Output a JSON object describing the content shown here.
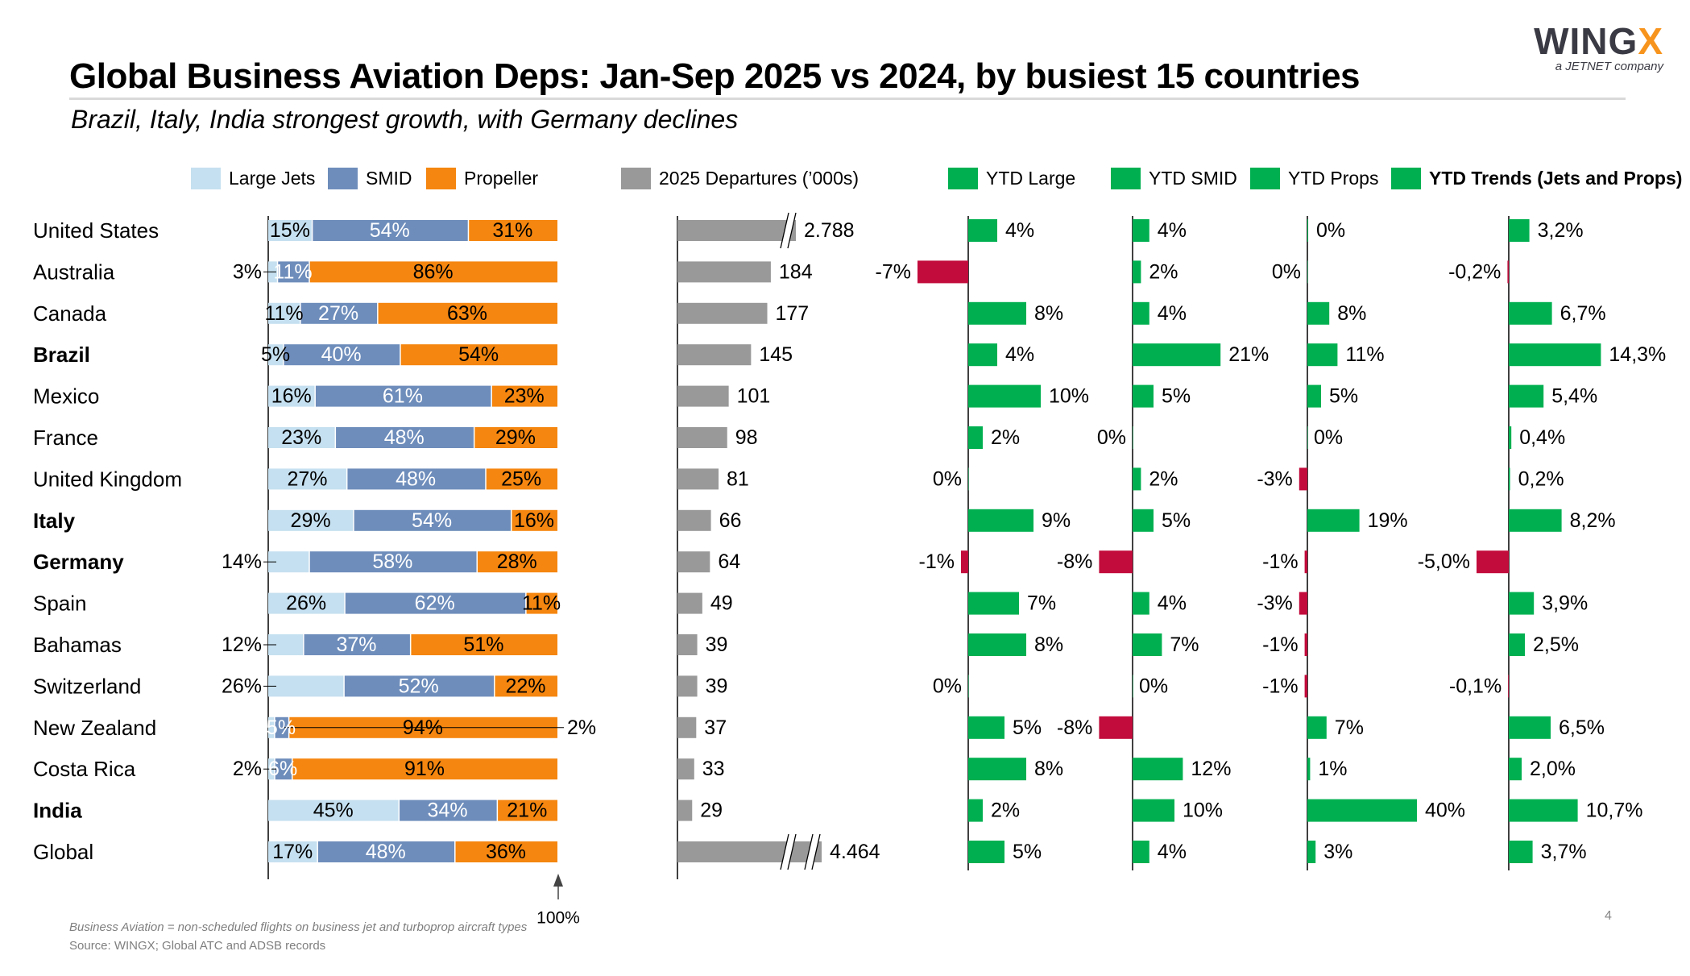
{
  "header": {
    "title": "Global Business Aviation Deps: Jan-Sep 2025 vs 2024, by busiest 15 countries",
    "subtitle": "Brazil, Italy, India strongest growth, with Germany declines"
  },
  "logo": {
    "brand_main": "WING",
    "brand_accent": "X",
    "tagline": "a JETNET company"
  },
  "colors": {
    "large_jets": "#c5e0f0",
    "smid": "#6e8dbb",
    "propeller": "#f5860f",
    "departures": "#999999",
    "positive": "#00b050",
    "negative": "#c20c3c"
  },
  "legend": {
    "large_jets": "Large Jets",
    "smid": "SMID",
    "propeller": "Propeller",
    "departures": "2025 Departures (’000s)",
    "ytd_large": "YTD Large",
    "ytd_smid": "YTD SMID",
    "ytd_props": "YTD Props",
    "ytd_trends": "YTD Trends (Jets and Props)"
  },
  "chart_data": {
    "type": "bar",
    "title": "Global Business Aviation Deps: Jan-Sep 2025 vs 2024, by busiest 15 countries",
    "categories": [
      "United States",
      "Australia",
      "Canada",
      "Brazil",
      "Mexico",
      "France",
      "United Kingdom",
      "Italy",
      "Germany",
      "Spain",
      "Bahamas",
      "Switzerland",
      "New Zealand",
      "Costa Rica",
      "India",
      "Global"
    ],
    "bold_categories": [
      "Brazil",
      "Italy",
      "Germany",
      "India"
    ],
    "mix_axis_label": "100%",
    "series": [
      {
        "name": "Large Jets",
        "panel": "mix",
        "values": [
          15,
          3,
          11,
          5,
          16,
          23,
          27,
          29,
          14,
          26,
          12,
          26,
          2,
          2,
          45,
          17
        ],
        "labels": [
          "15%",
          "3%",
          "11%",
          "5%",
          "16%",
          "23%",
          "27%",
          "29%",
          "14%",
          "26%",
          "12%",
          "26%",
          "2%",
          "2%",
          "45%",
          "17%"
        ]
      },
      {
        "name": "SMID",
        "panel": "mix",
        "values": [
          54,
          11,
          27,
          40,
          61,
          48,
          48,
          54,
          58,
          62,
          37,
          52,
          5,
          6,
          34,
          48
        ],
        "labels": [
          "54%",
          "11%",
          "27%",
          "40%",
          "61%",
          "48%",
          "48%",
          "54%",
          "58%",
          "62%",
          "37%",
          "52%",
          "5%",
          "6%",
          "34%",
          "48%"
        ]
      },
      {
        "name": "Propeller",
        "panel": "mix",
        "values": [
          31,
          86,
          63,
          54,
          23,
          29,
          25,
          16,
          28,
          11,
          51,
          22,
          94,
          91,
          21,
          36
        ],
        "labels": [
          "31%",
          "86%",
          "63%",
          "54%",
          "23%",
          "29%",
          "25%",
          "16%",
          "28%",
          "11%",
          "51%",
          "22%",
          "94%",
          "91%",
          "21%",
          "36%"
        ]
      },
      {
        "name": "2025 Departures ('000s)",
        "panel": "departures",
        "values": [
          2788,
          184,
          177,
          145,
          101,
          98,
          81,
          66,
          64,
          49,
          39,
          39,
          37,
          33,
          29,
          4464
        ],
        "labels": [
          "2.788",
          "184",
          "177",
          "145",
          "101",
          "98",
          "81",
          "66",
          "64",
          "49",
          "39",
          "39",
          "37",
          "33",
          "29",
          "4.464"
        ],
        "axis_break": [
          true,
          false,
          false,
          false,
          false,
          false,
          false,
          false,
          false,
          false,
          false,
          false,
          false,
          false,
          false,
          true
        ]
      },
      {
        "name": "YTD Large",
        "panel": "ytd_large",
        "values": [
          4,
          -7,
          8,
          4,
          10,
          2,
          0,
          9,
          -1,
          7,
          8,
          0,
          5,
          8,
          2,
          5
        ],
        "labels": [
          "4%",
          "-7%",
          "8%",
          "4%",
          "10%",
          "2%",
          "0%",
          "9%",
          "-1%",
          "7%",
          "8%",
          "0%",
          "5%",
          "8%",
          "2%",
          "5%"
        ]
      },
      {
        "name": "YTD SMID",
        "panel": "ytd_smid",
        "values": [
          4,
          2,
          4,
          21,
          5,
          0,
          2,
          5,
          -8,
          4,
          7,
          0,
          -8,
          12,
          10,
          4
        ],
        "labels": [
          "4%",
          "2%",
          "4%",
          "21%",
          "5%",
          "0%",
          "2%",
          "5%",
          "-8%",
          "4%",
          "7%",
          "0%",
          "-8%",
          "12%",
          "10%",
          "4%"
        ]
      },
      {
        "name": "YTD Props",
        "panel": "ytd_props",
        "values": [
          0.3,
          0,
          8,
          11,
          5,
          0,
          -3,
          19,
          -1,
          -3,
          -1,
          -1,
          7,
          1,
          40,
          3
        ],
        "labels": [
          "0%",
          "0%",
          "8%",
          "11%",
          "5%",
          "0%",
          "-3%",
          "19%",
          "-1%",
          "-3%",
          "-1%",
          "-1%",
          "7%",
          "1%",
          "40%",
          "3%"
        ]
      },
      {
        "name": "YTD Trends (Jets and Props)",
        "panel": "ytd_trends",
        "values": [
          3.2,
          -0.2,
          6.7,
          14.3,
          5.4,
          0.4,
          0.2,
          8.2,
          -5.0,
          3.9,
          2.5,
          -0.1,
          6.5,
          2.0,
          10.7,
          3.7
        ],
        "labels": [
          "3,2%",
          "-0,2%",
          "6,7%",
          "14,3%",
          "5,4%",
          "0,4%",
          "0,2%",
          "8,2%",
          "-5,0%",
          "3,9%",
          "2,5%",
          "-0,1%",
          "6,5%",
          "2,0%",
          "10,7%",
          "3,7%"
        ]
      }
    ]
  },
  "footer": {
    "note": "Business Aviation = non-scheduled flights on business jet and turboprop aircraft types",
    "source": "Source: WINGX; Global ATC and ADSB records",
    "page_number": "4"
  }
}
